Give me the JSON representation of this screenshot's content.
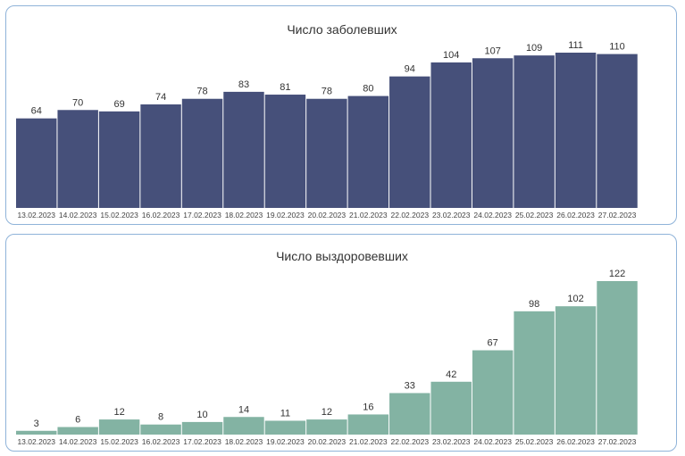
{
  "chart_data": [
    {
      "type": "bar",
      "title": "Число заболевших",
      "categories": [
        "13.02.2023",
        "14.02.2023",
        "15.02.2023",
        "16.02.2023",
        "17.02.2023",
        "18.02.2023",
        "19.02.2023",
        "20.02.2023",
        "21.02.2023",
        "22.02.2023",
        "23.02.2023",
        "24.02.2023",
        "25.02.2023",
        "26.02.2023",
        "27.02.2023"
      ],
      "values": [
        64,
        70,
        69,
        74,
        78,
        83,
        81,
        78,
        80,
        94,
        104,
        107,
        109,
        111,
        110
      ],
      "color": "#46507a",
      "ylim": [
        0,
        111
      ]
    },
    {
      "type": "bar",
      "title": "Число выздоровевших",
      "categories": [
        "13.02.2023",
        "14.02.2023",
        "15.02.2023",
        "16.02.2023",
        "17.02.2023",
        "18.02.2023",
        "19.02.2023",
        "20.02.2023",
        "21.02.2023",
        "22.02.2023",
        "23.02.2023",
        "24.02.2023",
        "25.02.2023",
        "26.02.2023",
        "27.02.2023"
      ],
      "values": [
        3,
        6,
        12,
        8,
        10,
        14,
        11,
        12,
        16,
        33,
        42,
        67,
        98,
        102,
        122
      ],
      "color": "#83b3a3",
      "ylim": [
        0,
        122
      ]
    }
  ]
}
